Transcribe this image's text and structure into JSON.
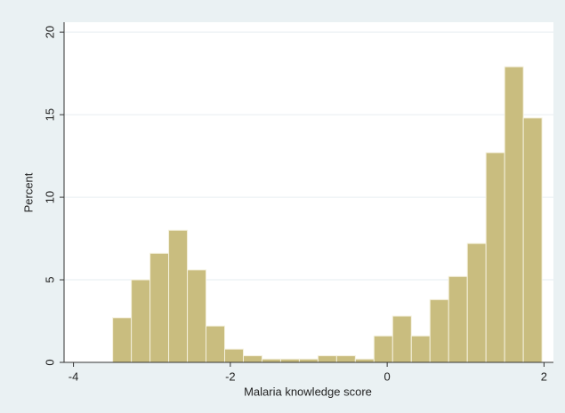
{
  "chart_data": {
    "type": "histogram",
    "x_label": "Malaria knowledge score",
    "y_label": "Percent",
    "bins": [
      -3.5,
      -3.262,
      -3.024,
      -2.786,
      -2.548,
      -2.31,
      -2.072,
      -1.834,
      -1.596,
      -1.358,
      -1.12,
      -0.882,
      -0.644,
      -0.406,
      -0.168,
      0.07,
      0.308,
      0.546,
      0.784,
      1.022,
      1.26,
      1.498,
      1.736,
      1.974
    ],
    "values": [
      2.7,
      5.0,
      6.6,
      8.0,
      5.6,
      2.2,
      0.8,
      0.4,
      0.2,
      0.2,
      0.2,
      0.4,
      0.4,
      0.2,
      1.6,
      2.8,
      1.6,
      3.8,
      5.2,
      7.2,
      12.7,
      17.9,
      14.8
    ],
    "color": "#c9bd7f",
    "xlim": [
      -4.12,
      2.12
    ],
    "ylim": [
      0,
      20.6
    ],
    "xticks": [
      -4,
      -2,
      0,
      2
    ],
    "yticks": [
      0,
      5,
      10,
      15,
      20
    ],
    "grid": true
  }
}
